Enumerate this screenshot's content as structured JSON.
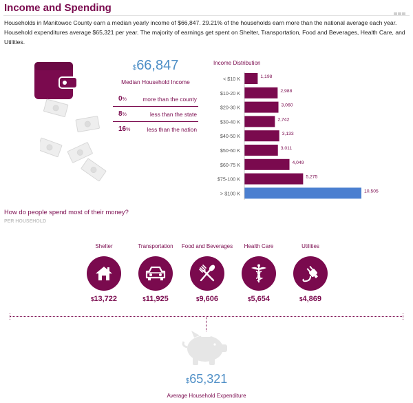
{
  "header": {
    "title": "Income and Spending"
  },
  "intro": "Households in Manitowoc County earn a median yearly income of $66,847. 29.21% of the households earn more than the national average each year. Household expenditures average $65,321 per year. The majority of earnings get spent on Shelter, Transportation, Food and Beverages, Health Care, and Utilities.",
  "median": {
    "currency": "$",
    "value": "66,847",
    "label": "Median Household Income",
    "comparisons": [
      {
        "pct": "0",
        "unit": "%",
        "text": "more than the county"
      },
      {
        "pct": "8",
        "unit": "%",
        "text": "less than the state"
      },
      {
        "pct": "16",
        "unit": "%",
        "text": "less than the nation"
      }
    ]
  },
  "colors": {
    "primary": "#7a0a4e",
    "highlight": "#4b7fd0",
    "value_blue": "#4d8ec6",
    "muted": "#e6e6e6"
  },
  "chart_data": {
    "type": "bar",
    "orientation": "horizontal",
    "title": "Income Distribution",
    "categories": [
      "< $10 K",
      "$10-20 K",
      "$20-30 K",
      "$30-40 K",
      "$40-50 K",
      "$50-60 K",
      "$60-75 K",
      "$75-100 K",
      "> $100 K"
    ],
    "values": [
      1198,
      2988,
      3060,
      2742,
      3133,
      3011,
      4049,
      5275,
      10505
    ],
    "value_labels": [
      "1,198",
      "2,988",
      "3,060",
      "2,742",
      "3,133",
      "3,011",
      "4,049",
      "5,275",
      "10,505"
    ],
    "highlight_index": 8,
    "grid": false,
    "legend": "none"
  },
  "spending": {
    "title": "How do people spend most of their money?",
    "subtitle": "PER HOUSEHOLD",
    "categories": [
      {
        "label": "Shelter",
        "currency": "$",
        "value": "13,722",
        "icon": "house-icon"
      },
      {
        "label": "Transportation",
        "currency": "$",
        "value": "11,925",
        "icon": "car-icon"
      },
      {
        "label": "Food and Beverages",
        "currency": "$",
        "value": "9,606",
        "icon": "fork-spoon-icon"
      },
      {
        "label": "Health Care",
        "currency": "$",
        "value": "5,654",
        "icon": "caduceus-icon"
      },
      {
        "label": "Utilities",
        "currency": "$",
        "value": "4,869",
        "icon": "plug-icon"
      }
    ]
  },
  "expenditure": {
    "currency": "$",
    "value": "65,321",
    "label": "Average Household Expenditure",
    "icon": "piggy-bank-icon"
  }
}
